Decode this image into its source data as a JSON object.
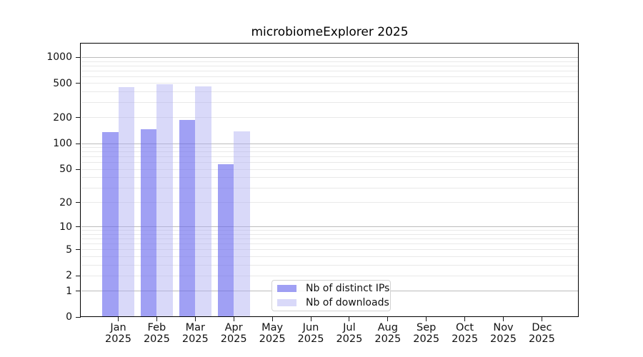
{
  "title": "microbiomeExplorer 2025",
  "chart_data": {
    "type": "bar",
    "title": "microbiomeExplorer 2025",
    "categories": [
      "Jan 2025",
      "Feb 2025",
      "Mar 2025",
      "Apr 2025",
      "May 2025",
      "Jun 2025",
      "Jul 2025",
      "Aug 2025",
      "Sep 2025",
      "Oct 2025",
      "Nov 2025",
      "Dec 2025"
    ],
    "series": [
      {
        "name": "Nb of distinct IPs",
        "fill": "rgba(102,102,238,0.62)",
        "values": [
          137,
          148,
          190,
          57,
          0,
          0,
          0,
          0,
          0,
          0,
          0,
          0
        ]
      },
      {
        "name": "Nb of downloads",
        "fill": "rgba(170,170,242,0.45)",
        "values": [
          455,
          490,
          465,
          140,
          0,
          0,
          0,
          0,
          0,
          0,
          0,
          0
        ]
      }
    ],
    "xlabel": "",
    "ylabel": "",
    "y_axis": {
      "scale": "log1p",
      "tick_labels": [
        "0",
        "1",
        "2",
        "5",
        "10",
        "20",
        "50",
        "100",
        "200",
        "500",
        "1000"
      ],
      "tick_values": [
        0,
        1,
        2,
        5,
        10,
        20,
        50,
        100,
        200,
        500,
        1000
      ],
      "ylim": [
        0,
        1450
      ],
      "major_grid_values": [
        1,
        10,
        100,
        1000
      ],
      "minor_grid_values": [
        2,
        3,
        4,
        5,
        6,
        7,
        8,
        9,
        20,
        30,
        40,
        50,
        60,
        70,
        80,
        90,
        200,
        300,
        400,
        500,
        600,
        700,
        800,
        900
      ]
    },
    "grid": "on",
    "legend_position": "lower center (inside plot)",
    "colors": {
      "bar_distinct_ips": "#a5a5f0",
      "bar_downloads": "#d8d8f9",
      "major_grid": "#bcbcbc",
      "minor_grid": "#e9e9e9",
      "spine": "#000000",
      "text": "#111111",
      "legend_border": "#d2d2d2",
      "background": "#ffffff"
    }
  }
}
